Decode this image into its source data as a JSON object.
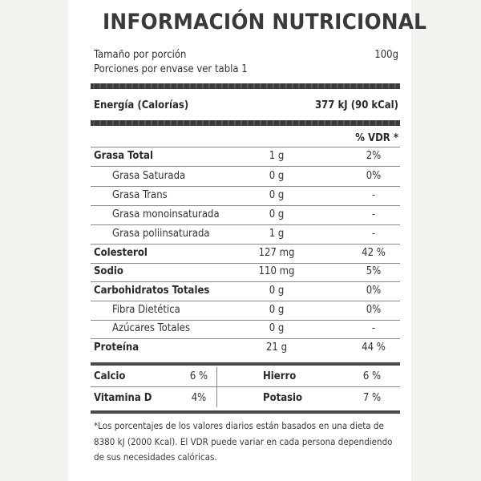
{
  "title": "INFORMACIÓN NUTRICIONAL",
  "serving": {
    "size_label": "Tamaño por porción",
    "size_value": "100g",
    "portions_label": "Porciones por envase ver tabla 1"
  },
  "energy": {
    "label": "Energía (Calorías)",
    "value": "377 kJ (90 kCal)"
  },
  "vdr_header": "% VDR *",
  "rows": [
    {
      "label": "Grasa Total",
      "amount": "1 g",
      "vdr": "2%"
    },
    {
      "label": "Grasa Saturada",
      "amount": "0 g",
      "vdr": "0%"
    },
    {
      "label": "Grasa Trans",
      "amount": "0 g",
      "vdr": "-"
    },
    {
      "label": "Grasa monoinsaturada",
      "amount": "0 g",
      "vdr": "-"
    },
    {
      "label": "Grasa poliinsaturada",
      "amount": "1 g",
      "vdr": "-"
    },
    {
      "label": "Colesterol",
      "amount": "127 mg",
      "vdr": "42 %"
    },
    {
      "label": "Sodio",
      "amount": "110 mg",
      "vdr": "5%"
    },
    {
      "label": "Carbohidratos Totales",
      "amount": "0 g",
      "vdr": "0%"
    },
    {
      "label": "Fibra Dietética",
      "amount": "0 g",
      "vdr": "0%"
    },
    {
      "label": "Azúcares Totales",
      "amount": "0 g",
      "vdr": "-"
    },
    {
      "label": "Proteína",
      "amount": "21 g",
      "vdr": "44 %"
    }
  ],
  "minerals": {
    "calcio": {
      "label": "Calcio",
      "value": "6 %"
    },
    "hierro": {
      "label": "Hierro",
      "value": "6 %"
    },
    "vitamina_d": {
      "label": "Vitamina D",
      "value": "4%"
    },
    "potasio": {
      "label": "Potasio",
      "value": "7 %"
    }
  },
  "footnote": "*Los porcentajes de los valores diarios están basados en una dieta de 8380 kJ (2000 Kcal). El VDR puede variar en cada persona dependiendo de sus necesidades calóricas."
}
